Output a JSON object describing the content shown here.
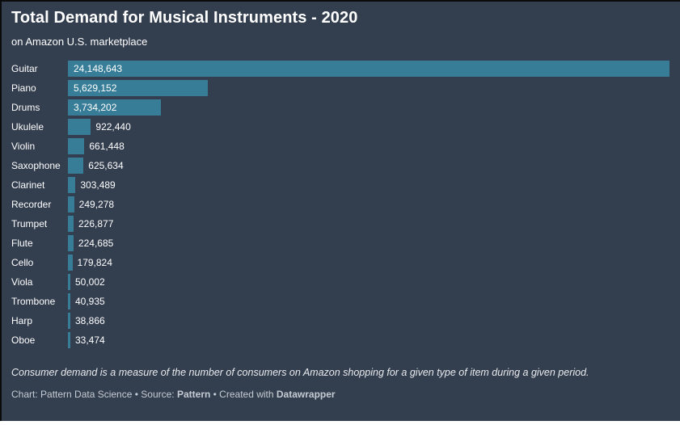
{
  "header": {
    "title": "Total Demand for Musical Instruments - 2020",
    "subtitle": "on Amazon U.S. marketplace"
  },
  "footer": {
    "note": "Consumer demand is a measure of the number of consumers on Amazon shopping for a given type of item during a given period.",
    "credits_prefix": "Chart: Pattern Data Science • Source: ",
    "source_name": "Pattern",
    "credits_middle": " • Created with ",
    "tool_name": "Datawrapper"
  },
  "colors": {
    "background": "#333e4f",
    "bar": "#387d97",
    "text": "#ffffff",
    "muted_text": "#c5cbd3",
    "note_text": "#e9ebee"
  },
  "chart_data": {
    "type": "bar",
    "orientation": "horizontal",
    "title": "Total Demand for Musical Instruments - 2020",
    "subtitle": "on Amazon U.S. marketplace",
    "xlabel": "",
    "ylabel": "",
    "xlim": [
      0,
      24148643
    ],
    "grid": false,
    "legend": false,
    "categories": [
      "Guitar",
      "Piano",
      "Drums",
      "Ukulele",
      "Violin",
      "Saxophone",
      "Clarinet",
      "Recorder",
      "Trumpet",
      "Flute",
      "Cello",
      "Viola",
      "Trombone",
      "Harp",
      "Oboe"
    ],
    "values": [
      24148643,
      5629152,
      3734202,
      922440,
      661448,
      625634,
      303489,
      249278,
      226877,
      224685,
      179824,
      50002,
      40935,
      38866,
      33474
    ],
    "value_labels": [
      "24,148,643",
      "5,629,152",
      "3,734,202",
      "922,440",
      "661,448",
      "625,634",
      "303,489",
      "249,278",
      "226,877",
      "224,685",
      "179,824",
      "50,002",
      "40,935",
      "38,866",
      "33,474"
    ]
  }
}
